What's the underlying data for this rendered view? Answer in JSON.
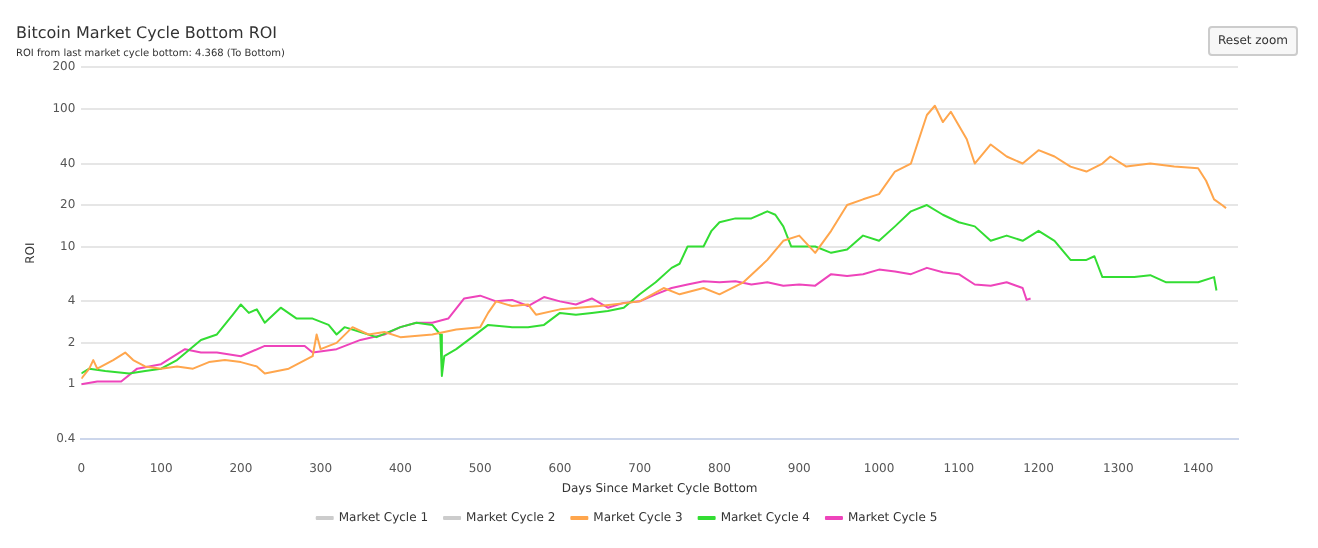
{
  "chart_data": {
    "type": "line",
    "title": "Bitcoin Market Cycle Bottom ROI",
    "subtitle": "ROI from last market cycle bottom: 4.368 (To Bottom)",
    "xlabel": "Days Since Market Cycle Bottom",
    "ylabel": "ROI",
    "annotations": [
      "Reset zoom"
    ],
    "log": "y",
    "grid": "y",
    "legend": "bottom",
    "marker": "none",
    "line_style": "solid",
    "xlim": [
      0,
      1450
    ],
    "xticks": [
      0,
      100,
      200,
      300,
      400,
      500,
      600,
      700,
      800,
      900,
      1000,
      1100,
      1200,
      1300,
      1400
    ],
    "ylim": [
      0.4,
      200
    ],
    "yticks": [
      0.4,
      1,
      2,
      4,
      10,
      20,
      40,
      100,
      200
    ],
    "series": [
      {
        "name": "Market Cycle 1",
        "color": "#cccccc"
      },
      {
        "name": "Market Cycle 2",
        "color": "#cccccc"
      },
      {
        "name": "Market Cycle 3",
        "color": "#ffa64d",
        "x": [
          0,
          10,
          15,
          20,
          40,
          55,
          65,
          80,
          100,
          120,
          140,
          160,
          180,
          200,
          220,
          230,
          260,
          290,
          295,
          300,
          320,
          340,
          360,
          380,
          400,
          440,
          470,
          500,
          510,
          520,
          540,
          560,
          570,
          600,
          650,
          700,
          730,
          750,
          780,
          800,
          830,
          860,
          880,
          900,
          920,
          940,
          960,
          980,
          1000,
          1020,
          1040,
          1050,
          1060,
          1070,
          1080,
          1090,
          1110,
          1120,
          1140,
          1160,
          1180,
          1200,
          1220,
          1240,
          1260,
          1280,
          1290,
          1310,
          1340,
          1370,
          1400,
          1410,
          1420,
          1430,
          1435
        ],
        "values": [
          1.1,
          1.3,
          1.5,
          1.3,
          1.5,
          1.7,
          1.5,
          1.35,
          1.3,
          1.35,
          1.3,
          1.45,
          1.5,
          1.45,
          1.35,
          1.2,
          1.3,
          1.6,
          2.3,
          1.8,
          2.0,
          2.6,
          2.3,
          2.4,
          2.2,
          2.3,
          2.5,
          2.6,
          3.3,
          4.0,
          3.7,
          3.8,
          3.2,
          3.5,
          3.7,
          4.0,
          5.0,
          4.5,
          5.0,
          4.5,
          5.5,
          8,
          11,
          12,
          9,
          13,
          20,
          22,
          24,
          35,
          40,
          60,
          90,
          105,
          80,
          95,
          60,
          40,
          55,
          45,
          40,
          50,
          45,
          38,
          35,
          40,
          45,
          38,
          40,
          38,
          37,
          30,
          22,
          20,
          19
        ]
      },
      {
        "name": "Market Cycle 4",
        "color": "#33dd33",
        "x": [
          0,
          10,
          30,
          60,
          80,
          100,
          120,
          150,
          170,
          190,
          200,
          210,
          220,
          230,
          250,
          270,
          290,
          310,
          320,
          330,
          350,
          370,
          400,
          420,
          440,
          450,
          452,
          455,
          470,
          490,
          510,
          540,
          560,
          580,
          600,
          620,
          640,
          660,
          680,
          700,
          720,
          740,
          750,
          760,
          780,
          790,
          800,
          820,
          840,
          860,
          870,
          880,
          890,
          900,
          920,
          940,
          960,
          980,
          1000,
          1020,
          1040,
          1060,
          1080,
          1100,
          1120,
          1140,
          1160,
          1180,
          1200,
          1220,
          1240,
          1260,
          1270,
          1280,
          1300,
          1320,
          1340,
          1360,
          1380,
          1400,
          1420,
          1423
        ],
        "values": [
          1.2,
          1.3,
          1.25,
          1.2,
          1.25,
          1.3,
          1.5,
          2.1,
          2.3,
          3.2,
          3.8,
          3.3,
          3.5,
          2.8,
          3.6,
          3.0,
          3.0,
          2.7,
          2.3,
          2.6,
          2.4,
          2.2,
          2.6,
          2.8,
          2.7,
          2.3,
          1.15,
          1.6,
          1.8,
          2.2,
          2.7,
          2.6,
          2.6,
          2.7,
          3.3,
          3.2,
          3.3,
          3.4,
          3.6,
          4.5,
          5.5,
          7.0,
          7.5,
          10,
          10,
          13,
          15,
          16,
          16,
          18,
          17,
          14,
          10,
          10,
          10,
          9,
          9.5,
          12,
          11,
          14,
          18,
          20,
          17,
          15,
          14,
          11,
          12,
          11,
          13,
          11,
          8,
          8,
          8.5,
          6,
          6,
          6,
          6.2,
          5.5,
          5.5,
          5.5,
          6,
          4.8
        ]
      },
      {
        "name": "Market Cycle 5",
        "color": "#ee44bb",
        "x": [
          0,
          20,
          50,
          70,
          100,
          130,
          150,
          170,
          200,
          230,
          280,
          290,
          320,
          350,
          380,
          400,
          420,
          440,
          460,
          480,
          500,
          520,
          540,
          560,
          580,
          600,
          620,
          640,
          660,
          680,
          700,
          720,
          740,
          760,
          780,
          800,
          820,
          840,
          860,
          880,
          900,
          920,
          940,
          960,
          980,
          1000,
          1020,
          1040,
          1060,
          1080,
          1100,
          1120,
          1140,
          1160,
          1180,
          1185,
          1190
        ],
        "values": [
          1.0,
          1.05,
          1.05,
          1.3,
          1.4,
          1.8,
          1.7,
          1.7,
          1.6,
          1.9,
          1.9,
          1.7,
          1.8,
          2.1,
          2.3,
          2.6,
          2.8,
          2.8,
          3.0,
          4.2,
          4.4,
          4.0,
          4.1,
          3.7,
          4.3,
          4.0,
          3.8,
          4.2,
          3.6,
          3.9,
          4.0,
          4.5,
          5.0,
          5.3,
          5.6,
          5.5,
          5.6,
          5.3,
          5.5,
          5.2,
          5.3,
          5.2,
          6.3,
          6.1,
          6.3,
          6.8,
          6.6,
          6.3,
          7.0,
          6.5,
          6.3,
          5.3,
          5.2,
          5.5,
          5.0,
          4.1,
          4.2
        ]
      }
    ]
  }
}
